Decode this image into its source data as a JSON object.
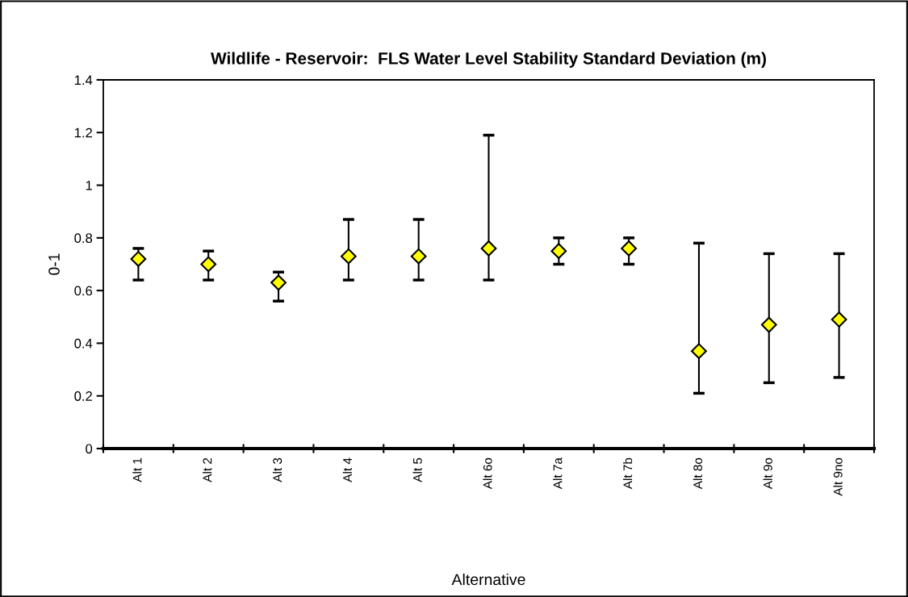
{
  "chart_data": {
    "type": "scatter",
    "title": "Wildlife - Reservoir:  FLS Water Level Stability Standard Deviation (m)",
    "xlabel": "Alternative",
    "ylabel": "0-1",
    "categories": [
      "Alt 1",
      "Alt 2",
      "Alt 3",
      "Alt 4",
      "Alt 5",
      "Alt 6o",
      "Alt 7a",
      "Alt 7b",
      "Alt 8o",
      "Alt 9o",
      "Alt 9no"
    ],
    "series": [
      {
        "color": "#ffff00",
        "values": [
          0.72,
          0.7,
          0.63,
          0.73,
          0.73,
          0.76,
          0.75,
          0.76,
          0.37,
          0.47,
          0.49
        ],
        "errors": [
          [
            0.64,
            0.76
          ],
          [
            0.64,
            0.75
          ],
          [
            0.56,
            0.67
          ],
          [
            0.64,
            0.87
          ],
          [
            0.64,
            0.87
          ],
          [
            0.64,
            1.19
          ],
          [
            0.7,
            0.8
          ],
          [
            0.7,
            0.8
          ],
          [
            0.21,
            0.78
          ],
          [
            0.25,
            0.74
          ],
          [
            0.27,
            0.74
          ]
        ]
      }
    ],
    "ylim": [
      0,
      1.4
    ],
    "yticks": [
      0,
      0.2,
      0.4,
      0.6,
      0.8,
      1,
      1.2,
      1.4
    ],
    "marker": "diamond",
    "grid": false,
    "legend": false
  }
}
